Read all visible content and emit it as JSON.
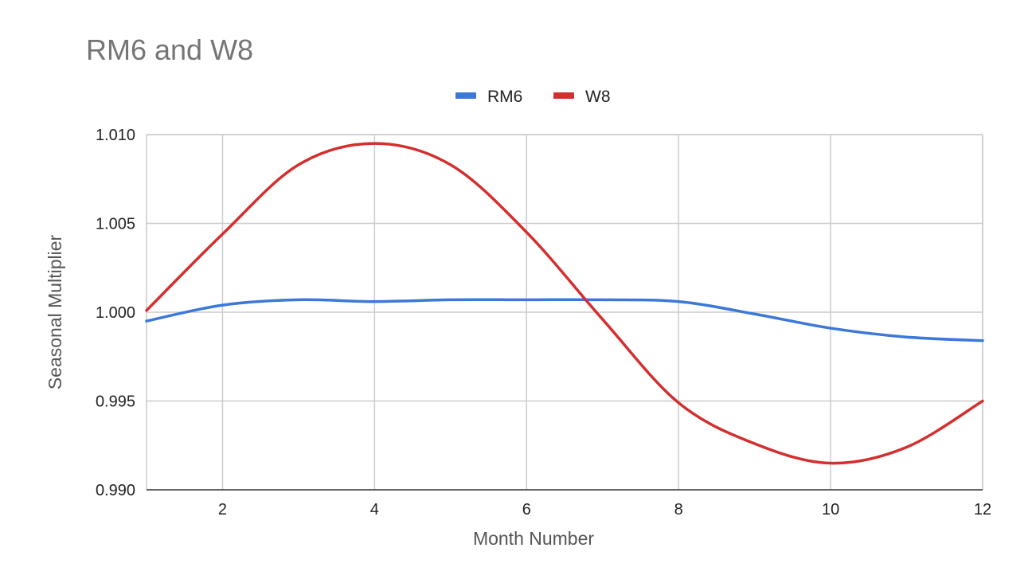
{
  "chart_data": {
    "type": "line",
    "title": "RM6 and W8",
    "xlabel": "Month Number",
    "ylabel": "Seasonal Multiplier",
    "xlim": [
      1,
      12
    ],
    "ylim": [
      0.99,
      1.01
    ],
    "x_ticks": [
      2,
      4,
      6,
      8,
      10,
      12
    ],
    "y_ticks": [
      0.99,
      0.995,
      1.0,
      1.005,
      1.01
    ],
    "y_tick_labels": [
      "0.990",
      "0.995",
      "1.000",
      "1.005",
      "1.010"
    ],
    "grid": true,
    "legend_position": "top-center",
    "smooth": true,
    "x": [
      1,
      2,
      3,
      4,
      5,
      6,
      7,
      8,
      9,
      10,
      11,
      12
    ],
    "series": [
      {
        "name": "RM6",
        "color": "#3c78d8",
        "values": [
          0.9995,
          1.0004,
          1.0007,
          1.0006,
          1.0007,
          1.0007,
          1.0007,
          1.0006,
          0.9999,
          0.9991,
          0.9986,
          0.9984
        ]
      },
      {
        "name": "W8",
        "color": "#d32f2f",
        "values": [
          1.0001,
          1.0044,
          1.0083,
          1.0095,
          1.0083,
          1.0045,
          0.9996,
          0.9949,
          0.9926,
          0.9915,
          0.9924,
          0.995
        ]
      }
    ]
  }
}
